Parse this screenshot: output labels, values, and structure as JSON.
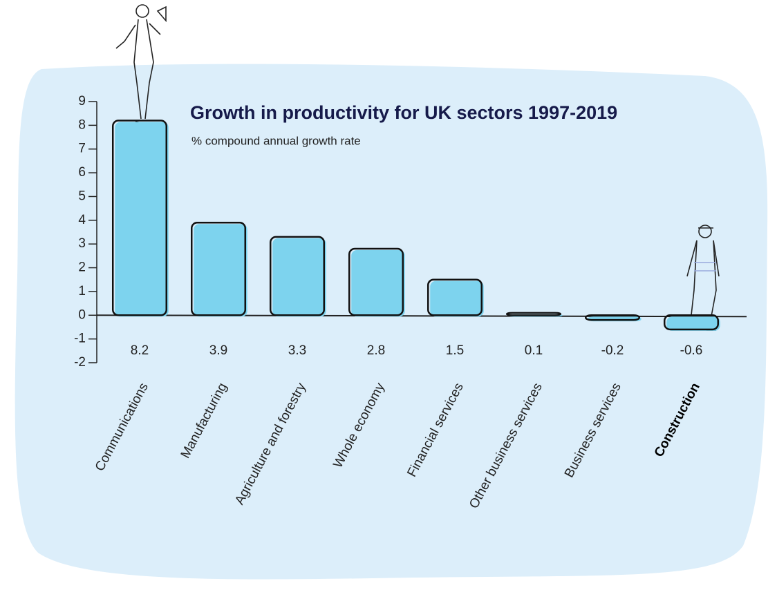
{
  "chart_data": {
    "type": "bar",
    "title": "Growth in productivity for UK sectors 1997-2019",
    "subtitle": "% compound annual growth rate",
    "categories": [
      "Communications",
      "Manufacturing",
      "Agriculture and forestry",
      "Whole economy",
      "Financial services",
      "Other business services",
      "Business services",
      "Construction"
    ],
    "values": [
      8.2,
      3.9,
      3.3,
      2.8,
      1.5,
      0.1,
      -0.2,
      -0.6
    ],
    "color": "#7dd3ee",
    "ylim": [
      -2,
      9
    ],
    "yticks": [
      -2,
      -1,
      0,
      1,
      2,
      3,
      4,
      5,
      6,
      7,
      8,
      9
    ],
    "grid": false
  }
}
